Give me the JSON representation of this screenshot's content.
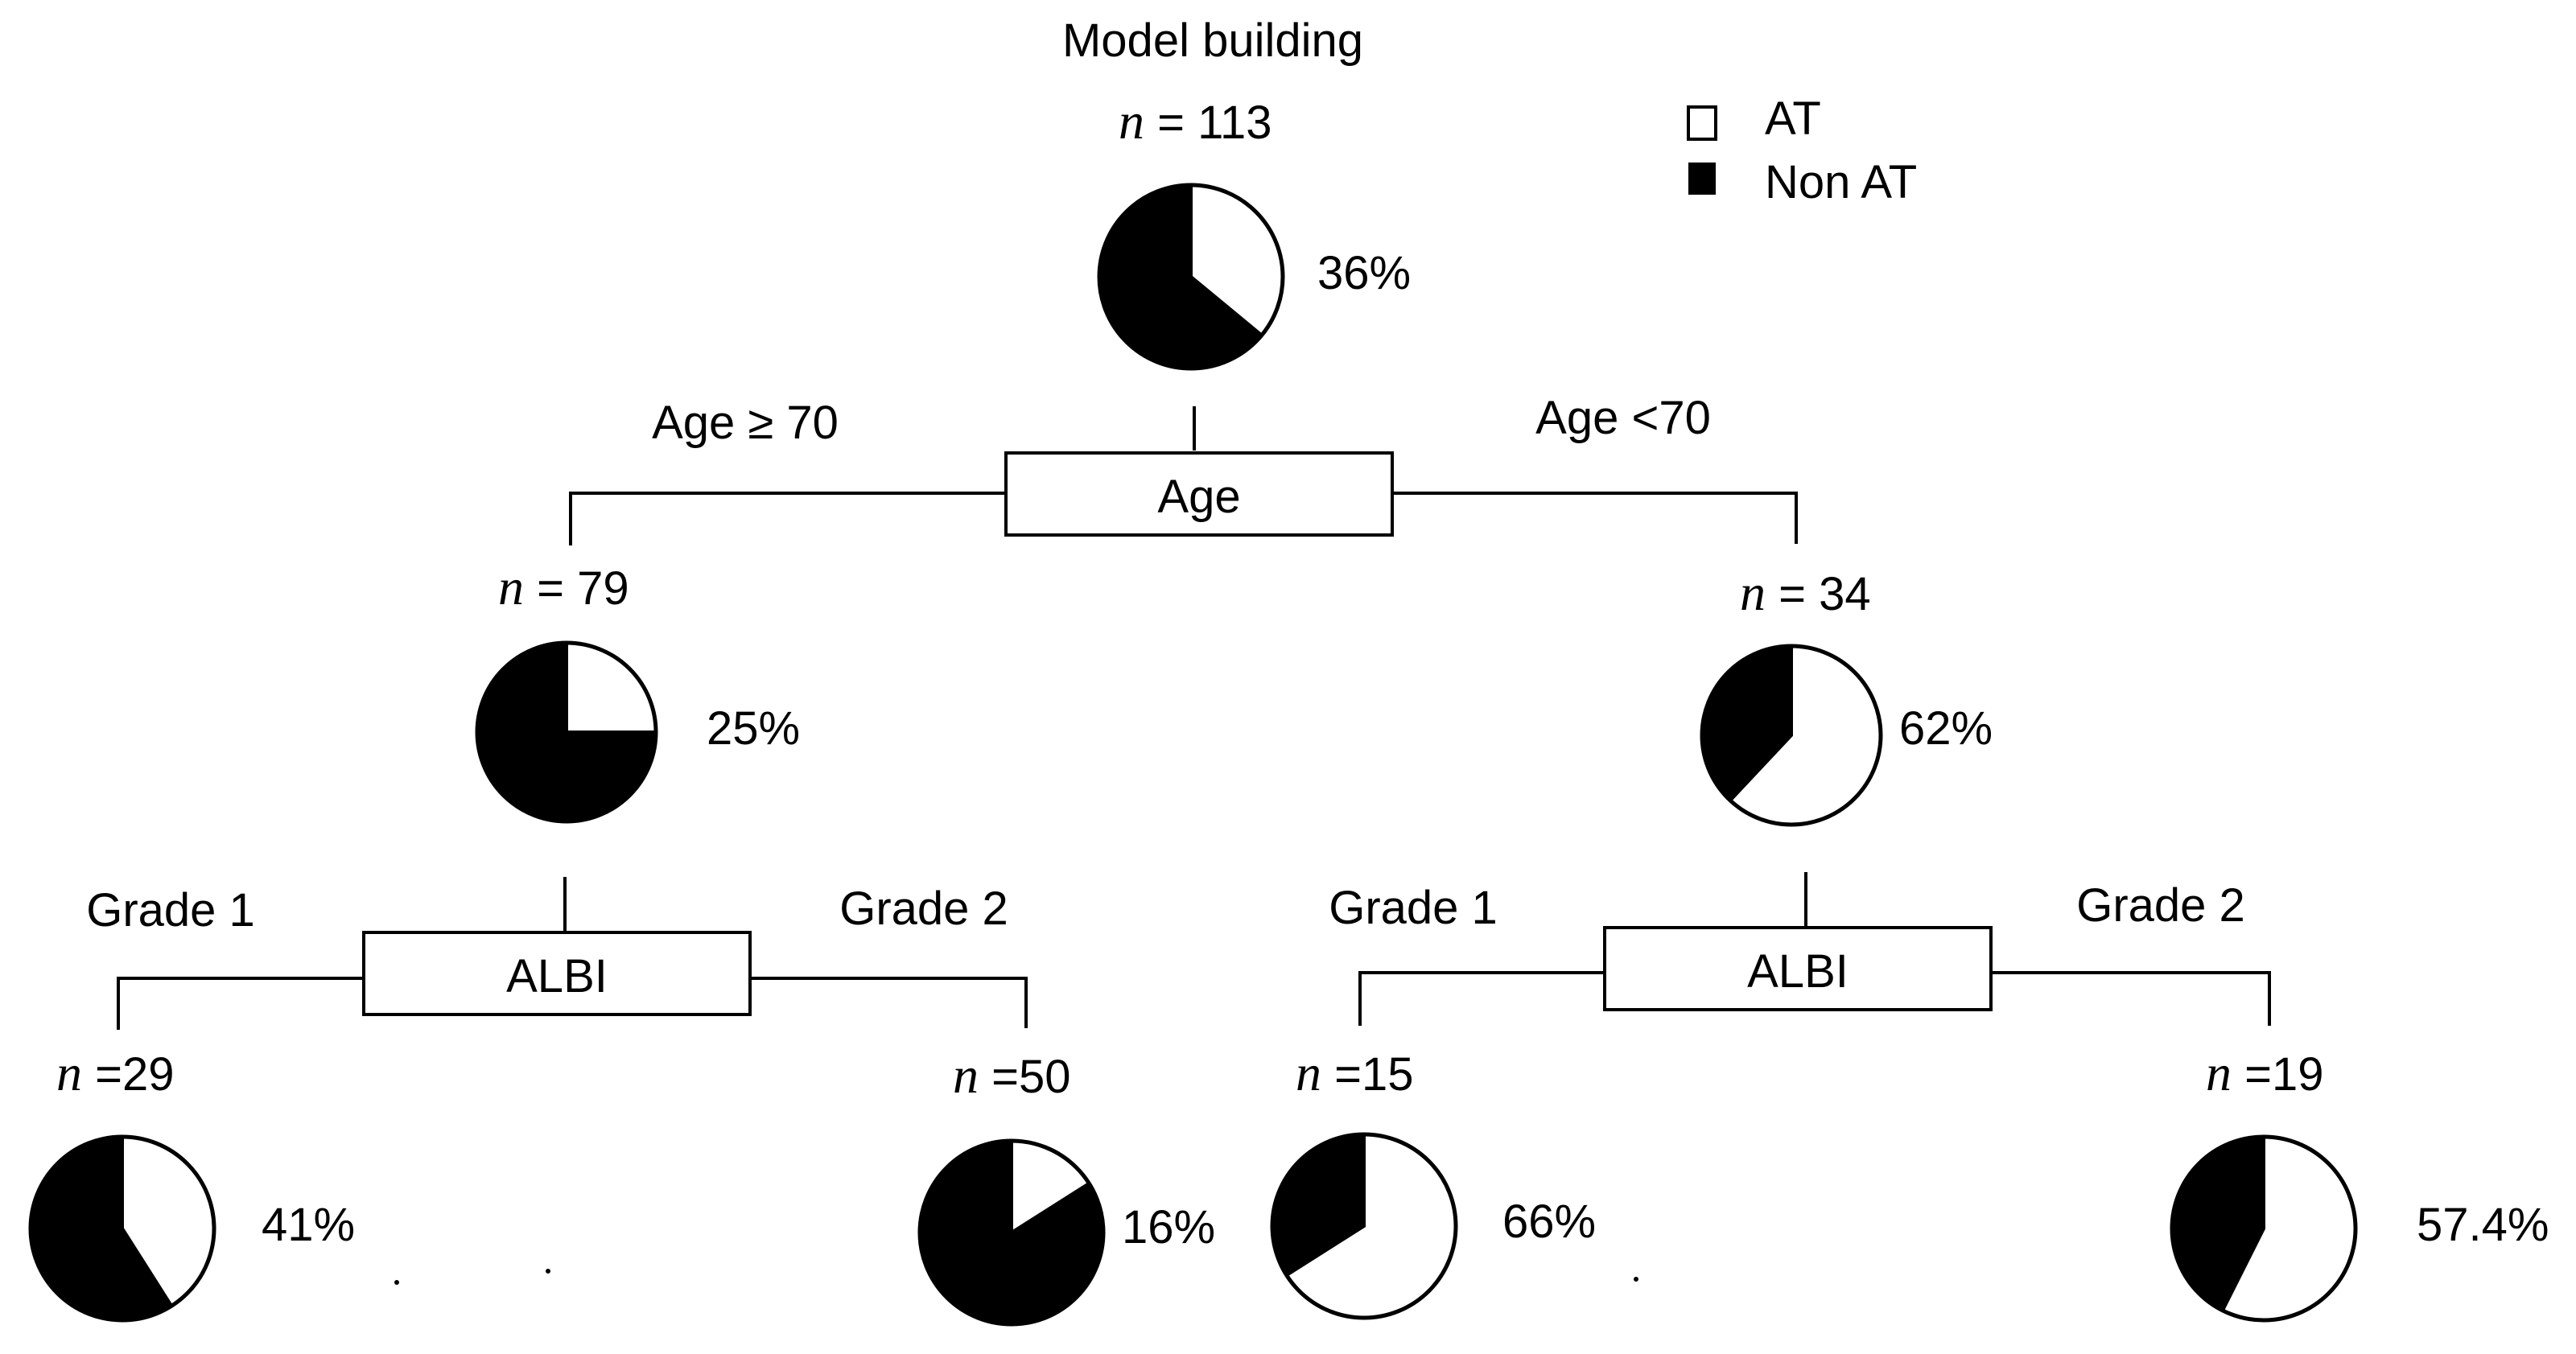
{
  "title": "Model building",
  "n_symbol": "n",
  "legend": {
    "items": [
      {
        "label": "AT",
        "color": "#ffffff"
      },
      {
        "label": "Non AT",
        "color": "#000000"
      }
    ]
  },
  "nodes": {
    "root": {
      "n_label": " = 113",
      "pct_label": "36%",
      "at_fraction": 0.36
    },
    "age_ge70": {
      "n_label": " = 79",
      "pct_label": "25%",
      "at_fraction": 0.25
    },
    "age_lt70": {
      "n_label": " = 34",
      "pct_label": "62%",
      "at_fraction": 0.62
    },
    "ge70_grade1": {
      "n_label": " =29",
      "pct_label": "41%",
      "at_fraction": 0.41
    },
    "ge70_grade2": {
      "n_label": " =50",
      "pct_label": "16%",
      "at_fraction": 0.16
    },
    "lt70_grade1": {
      "n_label": " =15",
      "pct_label": "66%",
      "at_fraction": 0.66
    },
    "lt70_grade2": {
      "n_label": " =19",
      "pct_label": "57.4%",
      "at_fraction": 0.574
    }
  },
  "splits": {
    "age": {
      "label": "Age",
      "left_branch": "Age ≥ 70",
      "right_branch": "Age  <70"
    },
    "albi_left": {
      "label": "ALBI",
      "left_branch": "Grade 1",
      "right_branch": "Grade 2"
    },
    "albi_right": {
      "label": "ALBI",
      "left_branch": "Grade 1",
      "right_branch": "Grade 2"
    }
  }
}
